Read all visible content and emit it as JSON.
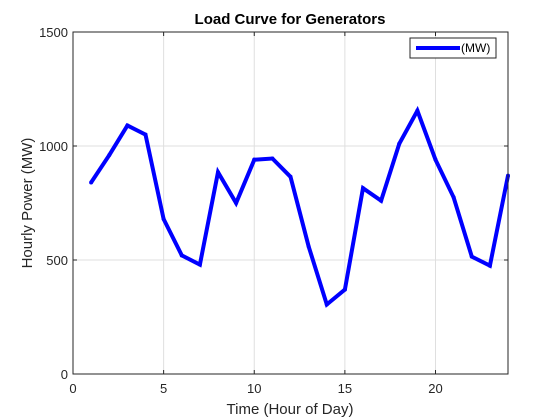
{
  "chart_data": {
    "type": "line",
    "title": "Load Curve for Generators",
    "xlabel": "Time (Hour of Day)",
    "ylabel": "Hourly Power (MW)",
    "xlim": [
      0,
      24
    ],
    "ylim": [
      0,
      1500
    ],
    "xticks": [
      0,
      5,
      10,
      15,
      20
    ],
    "yticks": [
      0,
      500,
      1000,
      1500
    ],
    "grid": true,
    "legend_position": "top-right",
    "series": [
      {
        "name": "(MW)",
        "color": "#0000ff",
        "x": [
          1,
          2,
          3,
          4,
          5,
          6,
          7,
          8,
          9,
          10,
          11,
          12,
          13,
          14,
          15,
          16,
          17,
          18,
          19,
          20,
          21,
          22,
          23,
          24
        ],
        "values": [
          840,
          960,
          1090,
          1050,
          680,
          520,
          480,
          885,
          750,
          940,
          945,
          865,
          560,
          305,
          370,
          815,
          760,
          1010,
          1155,
          940,
          775,
          515,
          475,
          870
        ]
      }
    ]
  }
}
